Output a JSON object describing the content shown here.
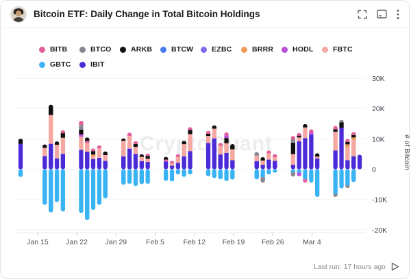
{
  "header": {
    "title": "Bitcoin ETF: Daily Change in Total Bitcoin Holdings"
  },
  "legend": {
    "items": [
      {
        "label": "BITB",
        "color": "#e25f9a"
      },
      {
        "label": "BTCO",
        "color": "#87878f"
      },
      {
        "label": "ARKB",
        "color": "#101010"
      },
      {
        "label": "BTCW",
        "color": "#4a7cf0"
      },
      {
        "label": "EZBC",
        "color": "#7d6cf0"
      },
      {
        "label": "BRRR",
        "color": "#f09a57"
      },
      {
        "label": "HODL",
        "color": "#b94fd6"
      },
      {
        "label": "FBTC",
        "color": "#f5a8a2"
      },
      {
        "label": "GBTC",
        "color": "#38b3f4"
      },
      {
        "label": "IBIT",
        "color": "#4b2bd8"
      }
    ]
  },
  "chart_data": {
    "type": "bar",
    "stacked": true,
    "title": "Bitcoin ETF: Daily Change in Total Bitcoin Holdings",
    "ylabel": "# of Bitcoin",
    "units": "thousand BTC",
    "ylim": [
      -24,
      33
    ],
    "grid": true,
    "legend_position": "top",
    "watermark": "CryptoQuant",
    "y_ticks": [
      {
        "label": "30K",
        "value": 30
      },
      {
        "label": "20K",
        "value": 20
      },
      {
        "label": "10K",
        "value": 10
      },
      {
        "label": "0",
        "value": 0
      },
      {
        "label": "-10K",
        "value": -10
      },
      {
        "label": "-20K",
        "value": -20
      }
    ],
    "x_ticks": [
      "Jan 15",
      "Jan 22",
      "Jan 29",
      "Feb 5",
      "Feb 12",
      "Feb 19",
      "Feb 26",
      "Mar 4"
    ],
    "series_colors": {
      "BITB": "#e25f9a",
      "BTCO": "#87878f",
      "ARKB": "#101010",
      "BTCW": "#4a7cf0",
      "EZBC": "#7d6cf0",
      "BRRR": "#f09a57",
      "HODL": "#b94fd6",
      "FBTC": "#f5a8a2",
      "GBTC": "#38b3f4",
      "IBIT": "#4b2bd8"
    },
    "bars": [
      {
        "date": "Jan 12",
        "day": 0,
        "pos": [
          [
            "IBIT",
            8.4
          ],
          [
            "ARKB",
            1.7
          ]
        ],
        "neg": [
          [
            "GBTC",
            -2.5
          ]
        ]
      },
      {
        "date": "Jan 16",
        "day": 4,
        "pos": [
          [
            "IBIT",
            4.4
          ],
          [
            "FBTC",
            2.7
          ],
          [
            "ARKB",
            1.1
          ]
        ],
        "neg": [
          [
            "GBTC",
            -11.7
          ]
        ]
      },
      {
        "date": "Jan 17",
        "day": 5,
        "pos": [
          [
            "IBIT",
            8.4
          ],
          [
            "FBTC",
            9.5
          ],
          [
            "ARKB",
            3.4
          ]
        ],
        "neg": [
          [
            "GBTC",
            -14.2
          ]
        ]
      },
      {
        "date": "Jan 18",
        "day": 6,
        "pos": [
          [
            "IBIT",
            3.6
          ],
          [
            "FBTC",
            4.5
          ],
          [
            "ARKB",
            1.1
          ]
        ],
        "neg": [
          [
            "GBTC",
            -10.8
          ]
        ]
      },
      {
        "date": "Jan 19",
        "day": 7,
        "pos": [
          [
            "IBIT",
            5.1
          ],
          [
            "FBTC",
            5.3
          ],
          [
            "ARKB",
            1.5
          ],
          [
            "BITB",
            1.0
          ]
        ],
        "neg": [
          [
            "GBTC",
            -13.9
          ]
        ]
      },
      {
        "date": "Jan 22",
        "day": 10,
        "pos": [
          [
            "IBIT",
            6.4
          ],
          [
            "FBTC",
            4.3
          ],
          [
            "HODL",
            0.8
          ],
          [
            "ARKB",
            1.6
          ],
          [
            "BTCO",
            1.5
          ],
          [
            "BITB",
            1.4
          ]
        ],
        "neg": [
          [
            "GBTC",
            -14.4
          ]
        ]
      },
      {
        "date": "Jan 23",
        "day": 11,
        "pos": [
          [
            "IBIT",
            5.8
          ],
          [
            "FBTC",
            2.9
          ],
          [
            "BITB",
            0.7
          ],
          [
            "ARKB",
            1.1
          ]
        ],
        "neg": [
          [
            "GBTC",
            -16.7
          ]
        ]
      },
      {
        "date": "Jan 24",
        "day": 12,
        "pos": [
          [
            "IBIT",
            3.4
          ],
          [
            "FBTC",
            0.9
          ],
          [
            "BRRR",
            0.6
          ],
          [
            "ARKB",
            1.1
          ],
          [
            "BITB",
            0.9
          ]
        ],
        "neg": [
          [
            "GBTC",
            -13.4
          ]
        ]
      },
      {
        "date": "Jan 25",
        "day": 13,
        "pos": [
          [
            "IBIT",
            3.8
          ],
          [
            "FBTC",
            3.1
          ],
          [
            "BITB",
            1.0
          ]
        ],
        "neg": [
          [
            "GBTC",
            -11.7
          ]
        ]
      },
      {
        "date": "Jan 26",
        "day": 14,
        "pos": [
          [
            "IBIT",
            2.8
          ],
          [
            "FBTC",
            1.9
          ],
          [
            "ARKB",
            1.2
          ]
        ],
        "neg": [
          [
            "GBTC",
            -9.6
          ]
        ]
      },
      {
        "date": "Jan 29",
        "day": 17,
        "pos": [
          [
            "IBIT",
            4.3
          ],
          [
            "FBTC",
            5.1
          ],
          [
            "ARKB",
            0.8
          ]
        ],
        "neg": [
          [
            "GBTC",
            -5.1
          ]
        ]
      },
      {
        "date": "Jan 30",
        "day": 18,
        "pos": [
          [
            "IBIT",
            6.8
          ],
          [
            "FBTC",
            4.2
          ],
          [
            "BITB",
            1.1
          ]
        ],
        "neg": [
          [
            "GBTC",
            -4.8
          ]
        ]
      },
      {
        "date": "Jan 31",
        "day": 19,
        "pos": [
          [
            "IBIT",
            5.1
          ],
          [
            "FBTC",
            2.3
          ],
          [
            "ARKB",
            0.9
          ],
          [
            "BITB",
            1.0
          ]
        ],
        "neg": [
          [
            "GBTC",
            -5.5
          ]
        ]
      },
      {
        "date": "Feb 1",
        "day": 20,
        "pos": [
          [
            "IBIT",
            2.7
          ],
          [
            "FBTC",
            1.4
          ],
          [
            "ARKB",
            0.9
          ]
        ],
        "neg": [
          [
            "GBTC",
            -4.9
          ]
        ]
      },
      {
        "date": "Feb 2",
        "day": 21,
        "pos": [
          [
            "IBIT",
            2.4
          ],
          [
            "FBTC",
            1.1
          ],
          [
            "ARKB",
            0.9
          ],
          [
            "BITB",
            0.8
          ]
        ],
        "neg": [
          [
            "GBTC",
            -4.8
          ]
        ]
      },
      {
        "date": "Feb 5",
        "day": 24,
        "pos": [
          [
            "IBIT",
            2.6
          ],
          [
            "BITB",
            0.6
          ],
          [
            "ARKB",
            0.9
          ]
        ],
        "neg": [
          [
            "GBTC",
            -3.8
          ]
        ]
      },
      {
        "date": "Feb 6",
        "day": 25,
        "pos": [
          [
            "IBIT",
            1.2
          ],
          [
            "FBTC",
            0.8
          ],
          [
            "BITB",
            0.8
          ]
        ],
        "neg": [
          [
            "GBTC",
            -4.0
          ]
        ]
      },
      {
        "date": "Feb 7",
        "day": 26,
        "pos": [
          [
            "IBIT",
            2.1
          ],
          [
            "FBTC",
            2.0
          ],
          [
            "BITB",
            0.9
          ]
        ],
        "neg": [
          [
            "GBTC",
            -1.7
          ]
        ]
      },
      {
        "date": "Feb 8",
        "day": 27,
        "pos": [
          [
            "IBIT",
            4.3
          ],
          [
            "FBTC",
            4.0
          ],
          [
            "ARKB",
            1.1
          ]
        ],
        "neg": [
          [
            "GBTC",
            -2.5
          ]
        ]
      },
      {
        "date": "Feb 9",
        "day": 28,
        "pos": [
          [
            "IBIT",
            6.0
          ],
          [
            "FBTC",
            5.6
          ],
          [
            "ARKB",
            1.4
          ],
          [
            "BITB",
            0.9
          ]
        ],
        "neg": [
          [
            "GBTC",
            -1.7
          ]
        ]
      },
      {
        "date": "Feb 12",
        "day": 31,
        "pos": [
          [
            "IBIT",
            8.7
          ],
          [
            "FBTC",
            2.3
          ],
          [
            "ARKB",
            0.7
          ],
          [
            "BITB",
            1.0
          ]
        ],
        "neg": [
          [
            "GBTC",
            -2.3
          ]
        ]
      },
      {
        "date": "Feb 13",
        "day": 32,
        "pos": [
          [
            "IBIT",
            10.2
          ],
          [
            "FBTC",
            3.2
          ],
          [
            "ARKB",
            1.1
          ]
        ],
        "neg": [
          [
            "GBTC",
            -2.9
          ]
        ]
      },
      {
        "date": "Feb 14",
        "day": 33,
        "pos": [
          [
            "IBIT",
            4.9
          ],
          [
            "FBTC",
            2.8
          ],
          [
            "BITB",
            1.0
          ]
        ],
        "neg": [
          [
            "GBTC",
            -3.3
          ]
        ]
      },
      {
        "date": "Feb 15",
        "day": 34,
        "pos": [
          [
            "IBIT",
            5.4
          ],
          [
            "FBTC",
            3.2
          ],
          [
            "ARKB",
            1.7
          ],
          [
            "HODL",
            0.9
          ],
          [
            "BITB",
            1.0
          ]
        ],
        "neg": [
          [
            "GBTC",
            -3.9
          ]
        ]
      },
      {
        "date": "Feb 16",
        "day": 35,
        "pos": [
          [
            "IBIT",
            3.0
          ],
          [
            "FBTC",
            3.6
          ],
          [
            "ARKB",
            1.7
          ]
        ],
        "neg": [
          [
            "GBTC",
            -3.4
          ]
        ]
      },
      {
        "date": "Feb 20",
        "day": 39,
        "pos": [
          [
            "IBIT",
            2.7
          ],
          [
            "FBTC",
            1.8
          ],
          [
            "BTCO",
            1.2
          ]
        ],
        "neg": [
          [
            "GBTC",
            -3.3
          ]
        ]
      },
      {
        "date": "Feb 21",
        "day": 40,
        "pos": [
          [
            "IBIT",
            1.5
          ],
          [
            "FBTC",
            1.4
          ],
          [
            "ARKB",
            1.1
          ]
        ],
        "neg": [
          [
            "GBTC",
            -2.6
          ],
          [
            "BTCO",
            -1.8
          ]
        ]
      },
      {
        "date": "Feb 22",
        "day": 41,
        "pos": [
          [
            "IBIT",
            3.2
          ],
          [
            "FBTC",
            2.0
          ],
          [
            "BITB",
            1.0
          ]
        ],
        "neg": [
          [
            "GBTC",
            -1.7
          ]
        ]
      },
      {
        "date": "Feb 23",
        "day": 42,
        "pos": [
          [
            "IBIT",
            2.8
          ],
          [
            "FBTC",
            1.2
          ],
          [
            "BITB",
            1.0
          ]
        ],
        "neg": [
          [
            "GBTC",
            -1.1
          ]
        ]
      },
      {
        "date": "Feb 26",
        "day": 45,
        "pos": [
          [
            "IBIT",
            1.5
          ],
          [
            "FBTC",
            3.5
          ],
          [
            "ARKB",
            3.8
          ],
          [
            "BTCO",
            1.1
          ],
          [
            "BITB",
            1.1
          ]
        ],
        "neg": [
          [
            "GBTC",
            -1.0
          ],
          [
            "BTCO",
            -1.4
          ]
        ]
      },
      {
        "date": "Feb 27",
        "day": 46,
        "pos": [
          [
            "IBIT",
            9.2
          ],
          [
            "FBTC",
            1.3
          ],
          [
            "ARKB",
            0.6
          ],
          [
            "BITB",
            0.9
          ]
        ],
        "neg": [
          [
            "GBTC",
            -1.1
          ],
          [
            "HODL",
            -1.2
          ]
        ]
      },
      {
        "date": "Feb 28",
        "day": 47,
        "pos": [
          [
            "IBIT",
            10.3
          ],
          [
            "FBTC",
            3.5
          ],
          [
            "ARKB",
            1.1
          ]
        ],
        "neg": [
          [
            "GBTC",
            -3.3
          ],
          [
            "BITB",
            -1.1
          ]
        ]
      },
      {
        "date": "Feb 29",
        "day": 48,
        "pos": [
          [
            "IBIT",
            11.4
          ],
          [
            "HODL",
            0.8
          ],
          [
            "BITB",
            1.0
          ]
        ],
        "neg": [
          [
            "GBTC",
            -4.4
          ]
        ]
      },
      {
        "date": "Mar 1",
        "day": 49,
        "pos": [
          [
            "IBIT",
            3.6
          ],
          [
            "FBTC",
            0.6
          ],
          [
            "ARKB",
            1.1
          ]
        ],
        "neg": [
          [
            "GBTC",
            -9.1
          ]
        ]
      },
      {
        "date": "Mar 4",
        "day": 52,
        "pos": [
          [
            "IBIT",
            6.2
          ],
          [
            "FBTC",
            6.2
          ],
          [
            "ARKB",
            0.8
          ],
          [
            "BITB",
            1.1
          ]
        ],
        "neg": [
          [
            "GBTC",
            -8.1
          ],
          [
            "BTCO",
            -1.0
          ]
        ]
      },
      {
        "date": "Mar 5",
        "day": 53,
        "pos": [
          [
            "IBIT",
            13.7
          ],
          [
            "ARKB",
            1.8
          ],
          [
            "BTCO",
            0.8
          ]
        ],
        "neg": [
          [
            "GBTC",
            -6.3
          ]
        ]
      },
      {
        "date": "Mar 6",
        "day": 54,
        "pos": [
          [
            "IBIT",
            3.0
          ],
          [
            "FBTC",
            4.4
          ],
          [
            "BRRR",
            0.8
          ],
          [
            "ARKB",
            0.8
          ],
          [
            "BITB",
            1.0
          ]
        ],
        "neg": [
          [
            "GBTC",
            -5.3
          ],
          [
            "BTCO",
            -0.9
          ]
        ]
      },
      {
        "date": "Mar 7",
        "day": 55,
        "pos": [
          [
            "IBIT",
            4.3
          ],
          [
            "FBTC",
            5.4
          ],
          [
            "BRRR",
            0.8
          ],
          [
            "ARKB",
            0.8
          ],
          [
            "BITB",
            1.0
          ]
        ],
        "neg": [
          [
            "GBTC",
            -4.2
          ]
        ]
      },
      {
        "date": "Mar 8",
        "day": 56,
        "pos": [
          [
            "IBIT",
            4.8
          ]
        ],
        "neg": []
      }
    ]
  },
  "footer": {
    "last_run": "Last run: 17 hours ago"
  }
}
